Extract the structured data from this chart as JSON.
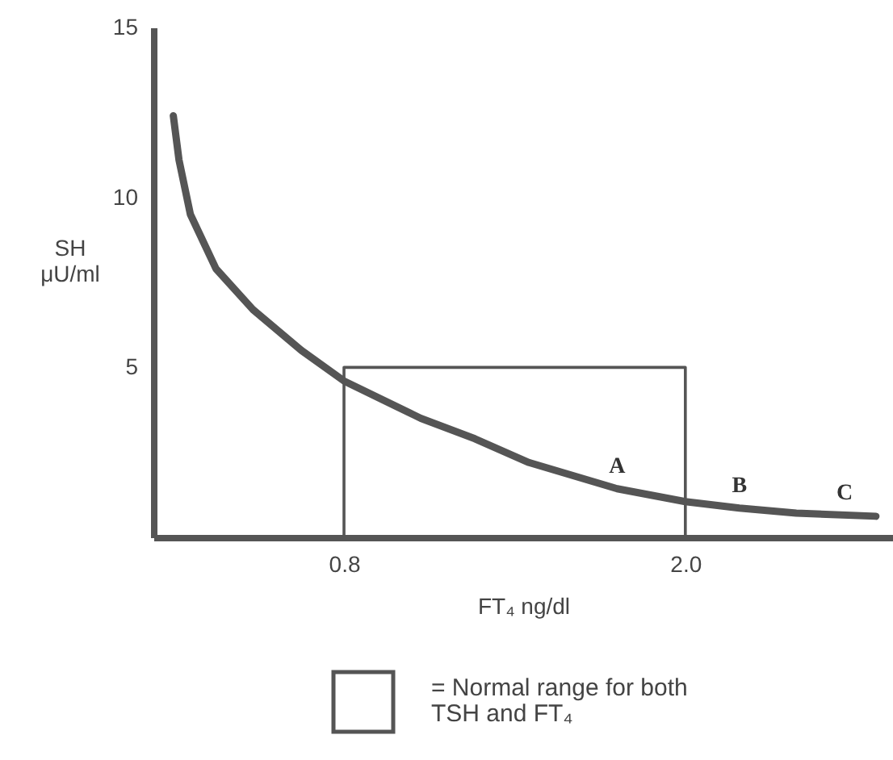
{
  "chart_data": {
    "type": "line",
    "xlabel": "FT₄ ng/dl",
    "ylabel": "SH μU/ml",
    "xlim": [
      0.13,
      2.73
    ],
    "ylim": [
      0,
      15
    ],
    "xticks": [
      0.8,
      {
        "value": 2,
        "label": "2.0"
      }
    ],
    "yticks": [
      5,
      10,
      15
    ],
    "series": [
      {
        "color": "#555555",
        "x": [
          0.2,
          0.22,
          0.26,
          0.35,
          0.48,
          0.65,
          0.8,
          1.07,
          1.26,
          1.45,
          1.76,
          2.0,
          2.19,
          2.39,
          2.67
        ],
        "values": [
          12.4,
          11.1,
          9.5,
          7.9,
          6.7,
          5.5,
          4.6,
          3.5,
          2.9,
          2.2,
          1.43,
          1.05,
          0.86,
          0.71,
          0.62
        ]
      },
      {
        "name": "= Normal range for both TSH and FT₄",
        "color": "#555555",
        "x": [
          0.8,
          0.8,
          2.0,
          2.0
        ],
        "values": [
          0,
          5,
          5,
          0
        ]
      }
    ],
    "annotations": [
      {
        "text": "A",
        "x": 1.76,
        "y": 1.43
      },
      {
        "text": "B",
        "x": 2.19,
        "y": 0.86
      },
      {
        "text": "C",
        "x": 2.56,
        "y": 0.65
      }
    ],
    "legend": "bottom",
    "grid": false
  }
}
